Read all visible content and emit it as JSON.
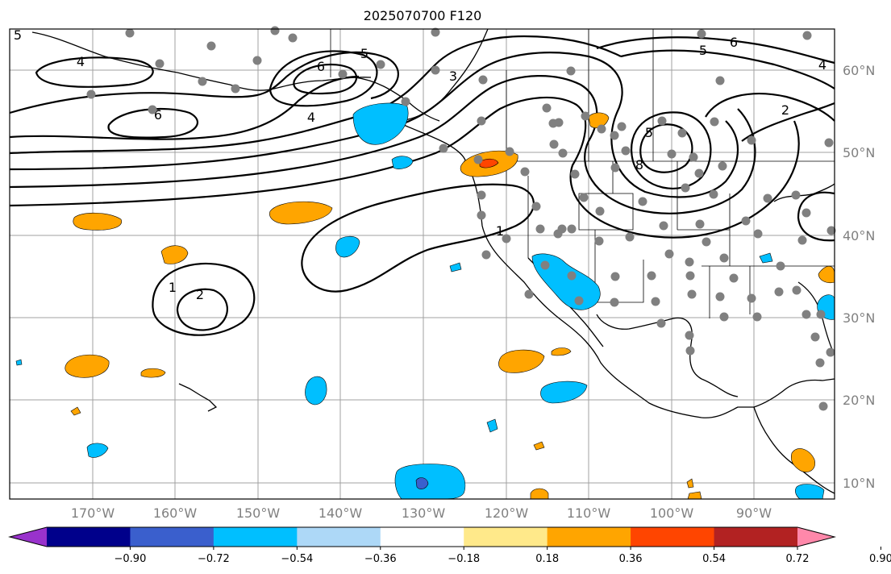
{
  "title": "2025070700 F120",
  "longitude_labels": [
    "170°W",
    "160°W",
    "150°W",
    "140°W",
    "130°W",
    "120°W",
    "110°W",
    "100°W",
    "90°W"
  ],
  "latitude_labels": [
    "10°N",
    "20°N",
    "30°N",
    "40°N",
    "50°N",
    "60°N"
  ],
  "contour_labels": [
    "5",
    "4",
    "6",
    "6",
    "5",
    "4",
    "3",
    "6",
    "5",
    "5",
    "4",
    "2",
    "1",
    "1",
    "2",
    "8"
  ],
  "colorbar": {
    "colors": [
      "#9932cc",
      "#00008b",
      "#3a5fcd",
      "#00bfff",
      "#add8f7",
      "#ffffff",
      "#ffe98a",
      "#ffa500",
      "#ff4500",
      "#b22222",
      "#ff88aa"
    ],
    "tick_labels": [
      "−0.90",
      "−0.72",
      "−0.54",
      "−0.36",
      "−0.18",
      "0.18",
      "0.36",
      "0.54",
      "0.72",
      "0.90"
    ]
  },
  "colors": {
    "positive_anomaly": "#ffa500",
    "strong_positive_anomaly": "#ff4500",
    "negative_anomaly": "#00bfff",
    "strong_negative_anomaly": "#3a5fcd",
    "station_dot": "#808080",
    "contour": "#000000",
    "gridline": "#a0a0a0"
  }
}
